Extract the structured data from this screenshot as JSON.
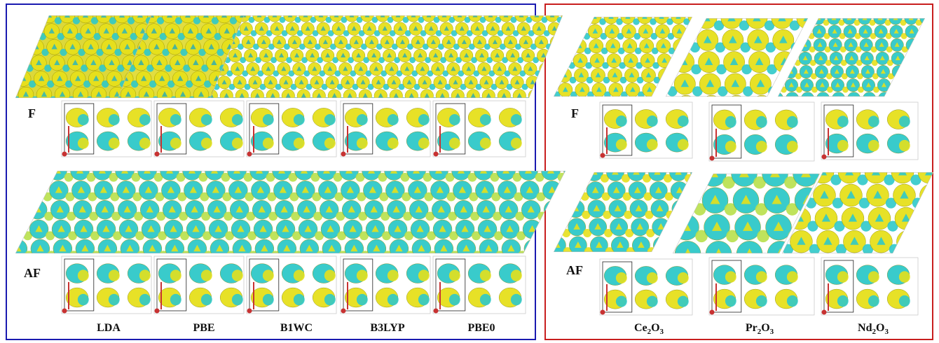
{
  "left_panel": {
    "border_color": "#1a1ab0",
    "row_labels": [
      "F",
      "AF"
    ],
    "column_labels": [
      "LDA",
      "PBE",
      "B1WC",
      "B3LYP",
      "PBE0"
    ]
  },
  "right_panel": {
    "border_color": "#c81e1e",
    "row_labels": [
      "F",
      "AF"
    ],
    "column_labels": [
      {
        "base1": "Ce",
        "sub1": "2",
        "base2": "O",
        "sub2": "3"
      },
      {
        "base1": "Pr",
        "sub1": "2",
        "base2": "O",
        "sub2": "3"
      },
      {
        "base1": "Nd",
        "sub1": "2",
        "base2": "O",
        "sub2": "3"
      }
    ]
  },
  "colors": {
    "isosurface_positive": "#e6e01c",
    "isosurface_negative": "#2fc9c9",
    "atom": "#c83232"
  }
}
